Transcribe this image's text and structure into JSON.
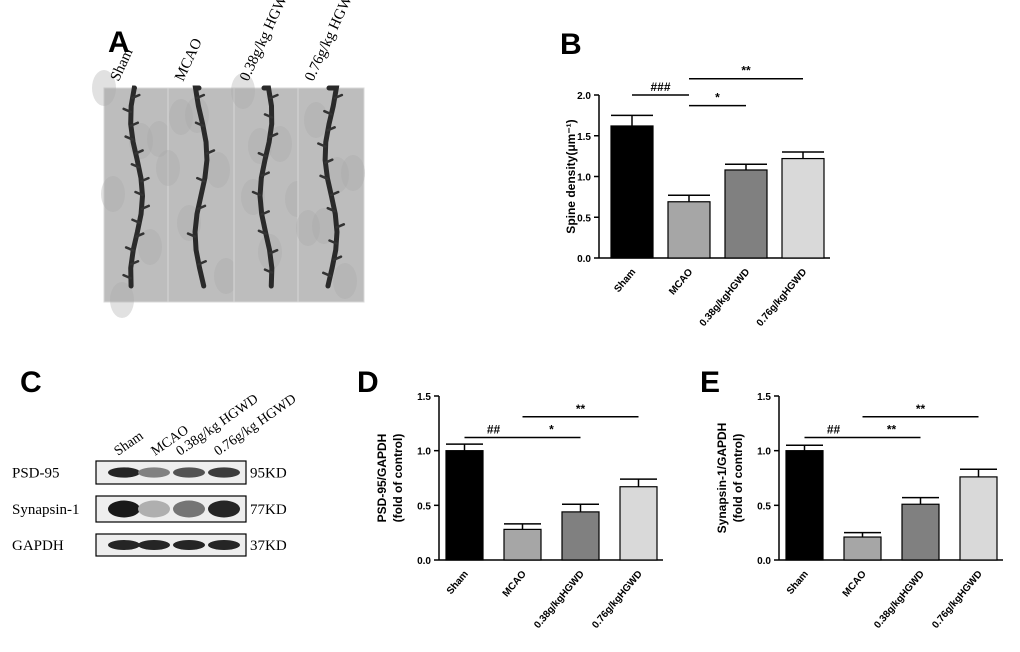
{
  "panel_labels": {
    "a": "A",
    "b": "B",
    "c": "C",
    "d": "D",
    "e": "E"
  },
  "panelA": {
    "groups": [
      "Sham",
      "MCAO",
      "0.38g/kg HGWD",
      "0.76g/kg HGWD"
    ]
  },
  "panelC": {
    "lanes": [
      "Sham",
      "MCAO",
      "0.38g/kg HGWD",
      "0.76g/kg HGWD"
    ],
    "proteins": [
      "PSD-95",
      "Synapsin-1",
      "GAPDH"
    ],
    "sizes": [
      "95KD",
      "77KD",
      "37KD"
    ],
    "intensities": [
      [
        0.95,
        0.55,
        0.75,
        0.85
      ],
      [
        1.0,
        0.35,
        0.6,
        0.95
      ],
      [
        0.95,
        0.95,
        0.95,
        0.95
      ]
    ]
  },
  "chart_data": [
    {
      "type": "bar",
      "panel": "B",
      "categories": [
        "Sham",
        "MCAO",
        "0.38g/kgHGWD",
        "0.76g/kgHGWD"
      ],
      "values": [
        1.62,
        0.69,
        1.08,
        1.22
      ],
      "errors": [
        0.13,
        0.08,
        0.07,
        0.08
      ],
      "colors": [
        "#000000",
        "#a6a6a6",
        "#808080",
        "#d9d9d9"
      ],
      "ylabel": "Spine density(μm⁻¹)",
      "ylim": [
        0,
        2.0
      ],
      "yticks": [
        "0.0",
        "0.5",
        "1.0",
        "1.5",
        "2.0"
      ],
      "brackets": [
        {
          "from": 0,
          "to": 1,
          "label": "###",
          "level": 2.0
        },
        {
          "from": 1,
          "to": 2,
          "label": "*",
          "level": 1.87
        },
        {
          "from": 1,
          "to": 3,
          "label": "**",
          "level": 2.2
        }
      ]
    },
    {
      "type": "bar",
      "panel": "D",
      "categories": [
        "Sham",
        "MCAO",
        "0.38g/kgHGWD",
        "0.76g/kgHGWD"
      ],
      "values": [
        1.0,
        0.28,
        0.44,
        0.67
      ],
      "errors": [
        0.06,
        0.05,
        0.07,
        0.07
      ],
      "colors": [
        "#000000",
        "#a6a6a6",
        "#808080",
        "#d9d9d9"
      ],
      "ylabel": "PSD-95/GAPDH",
      "ylabel2": "(fold of control)",
      "ylim": [
        0,
        1.5
      ],
      "yticks": [
        "0.0",
        "0.5",
        "1.0",
        "1.5"
      ],
      "brackets": [
        {
          "from": 0,
          "to": 1,
          "label": "##",
          "level": 1.12
        },
        {
          "from": 1,
          "to": 2,
          "label": "*",
          "level": 1.12
        },
        {
          "from": 1,
          "to": 3,
          "label": "**",
          "level": 1.31
        }
      ]
    },
    {
      "type": "bar",
      "panel": "E",
      "categories": [
        "Sham",
        "MCAO",
        "0.38g/kgHGWD",
        "0.76g/kgHGWD"
      ],
      "values": [
        1.0,
        0.21,
        0.51,
        0.76
      ],
      "errors": [
        0.05,
        0.04,
        0.06,
        0.07
      ],
      "colors": [
        "#000000",
        "#a6a6a6",
        "#808080",
        "#d9d9d9"
      ],
      "ylabel": "Synapsin-1/GAPDH",
      "ylabel2": "(fold of control)",
      "ylim": [
        0,
        1.5
      ],
      "yticks": [
        "0.0",
        "0.5",
        "1.0",
        "1.5"
      ],
      "brackets": [
        {
          "from": 0,
          "to": 1,
          "label": "##",
          "level": 1.12
        },
        {
          "from": 1,
          "to": 2,
          "label": "**",
          "level": 1.12
        },
        {
          "from": 1,
          "to": 3,
          "label": "**",
          "level": 1.31
        }
      ]
    }
  ]
}
